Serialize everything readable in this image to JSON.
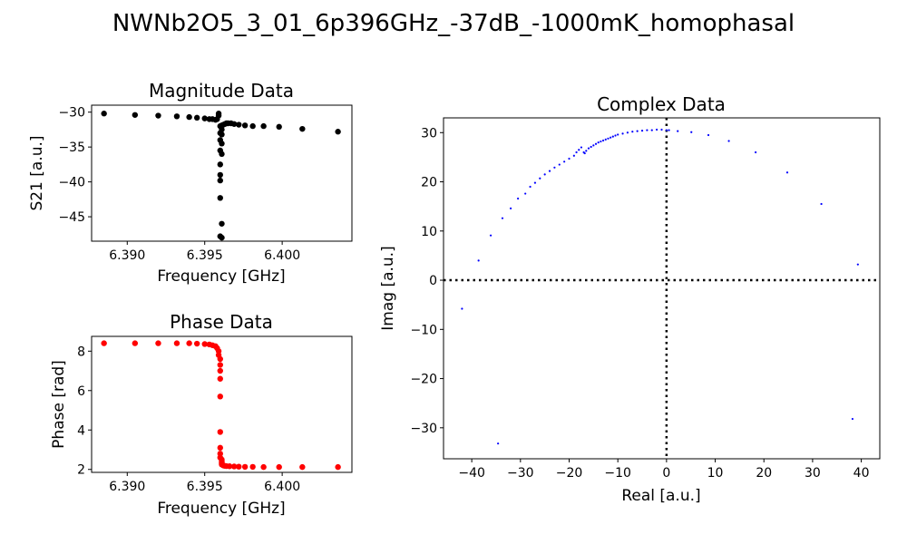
{
  "figure": {
    "suptitle": "NWNb2O5_3_01_6p396GHz_-37dB_-1000mK_homophasal"
  },
  "chart_data": [
    {
      "id": "magnitude",
      "type": "scatter",
      "title": "Magnitude Data",
      "xlabel": "Frequency [GHz]",
      "ylabel": "S21 [a.u.]",
      "xlim": [
        6.3877,
        6.4045
      ],
      "ylim": [
        -48.5,
        -29.0
      ],
      "xticks": [
        6.39,
        6.395,
        6.4
      ],
      "yticks": [
        -30,
        -35,
        -40,
        -45
      ],
      "xtick_labels": [
        "6.390",
        "6.395",
        "6.400"
      ],
      "ytick_labels": [
        "−30",
        "−35",
        "−40",
        "−45"
      ],
      "color": "#000000",
      "x": [
        6.3885,
        6.3905,
        6.392,
        6.3932,
        6.394,
        6.3945,
        6.395,
        6.3953,
        6.3955,
        6.3957,
        6.3958,
        6.3959,
        6.3959,
        6.396,
        6.396,
        6.396,
        6.396,
        6.396,
        6.396,
        6.396,
        6.396,
        6.396,
        6.3961,
        6.3961,
        6.3961,
        6.3961,
        6.3961,
        6.3961,
        6.3961,
        6.3962,
        6.3963,
        6.3964,
        6.3965,
        6.3967,
        6.3969,
        6.3972,
        6.3976,
        6.3981,
        6.3988,
        6.3998,
        6.4013,
        6.4036
      ],
      "y": [
        -30.2,
        -30.4,
        -30.5,
        -30.6,
        -30.7,
        -30.8,
        -30.9,
        -31.0,
        -31.0,
        -31.1,
        -31.0,
        -30.5,
        -30.2,
        -32.0,
        -33.0,
        -34.0,
        -35.5,
        -37.5,
        -39.0,
        -39.8,
        -42.3,
        -47.8,
        -48.0,
        -46.0,
        -36.0,
        -34.5,
        -33.2,
        -32.5,
        -31.9,
        -31.8,
        -31.7,
        -31.6,
        -31.6,
        -31.6,
        -31.7,
        -31.8,
        -31.9,
        -32.0,
        -32.0,
        -32.1,
        -32.4,
        -32.8
      ]
    },
    {
      "id": "phase",
      "type": "scatter",
      "title": "Phase Data",
      "xlabel": "Frequency [GHz]",
      "ylabel": "Phase [rad]",
      "xlim": [
        6.3877,
        6.4045
      ],
      "ylim": [
        1.85,
        8.75
      ],
      "xticks": [
        6.39,
        6.395,
        6.4
      ],
      "yticks": [
        2,
        4,
        6,
        8
      ],
      "xtick_labels": [
        "6.390",
        "6.395",
        "6.400"
      ],
      "ytick_labels": [
        "2",
        "4",
        "6",
        "8"
      ],
      "color": "#ff0000",
      "x": [
        6.3885,
        6.3905,
        6.392,
        6.3932,
        6.394,
        6.3945,
        6.395,
        6.3953,
        6.3955,
        6.3957,
        6.3958,
        6.3959,
        6.3959,
        6.396,
        6.396,
        6.396,
        6.396,
        6.396,
        6.396,
        6.396,
        6.396,
        6.396,
        6.3961,
        6.3961,
        6.3961,
        6.3961,
        6.3961,
        6.3962,
        6.3963,
        6.3964,
        6.3966,
        6.3969,
        6.3972,
        6.3976,
        6.3981,
        6.3988,
        6.3998,
        6.4013,
        6.4036
      ],
      "y": [
        8.4,
        8.4,
        8.4,
        8.4,
        8.4,
        8.38,
        8.36,
        8.34,
        8.3,
        8.25,
        8.15,
        8.0,
        7.8,
        7.6,
        7.3,
        7.0,
        6.6,
        5.7,
        3.9,
        3.1,
        2.8,
        2.6,
        2.5,
        2.4,
        2.35,
        2.3,
        2.25,
        2.2,
        2.18,
        2.17,
        2.16,
        2.15,
        2.14,
        2.13,
        2.13,
        2.12,
        2.12,
        2.12,
        2.12
      ]
    },
    {
      "id": "complex",
      "type": "scatter",
      "title": "Complex Data",
      "xlabel": "Real [a.u.]",
      "ylabel": "Imag [a.u.]",
      "xlim": [
        -45.8,
        43.8
      ],
      "ylim": [
        -36.3,
        33.0
      ],
      "xticks": [
        -40,
        -30,
        -20,
        -10,
        0,
        10,
        20,
        30,
        40
      ],
      "yticks": [
        -30,
        -20,
        -10,
        0,
        10,
        20,
        30
      ],
      "xtick_labels": [
        "−40",
        "−30",
        "−20",
        "−10",
        "0",
        "10",
        "20",
        "30",
        "40"
      ],
      "ytick_labels": [
        "−30",
        "−20",
        "−10",
        "0",
        "10",
        "20",
        "30"
      ],
      "color": "#0000ff",
      "reference_lines": {
        "x": 0,
        "y": 0,
        "style": "dotted"
      },
      "x": [
        -34.6,
        -42.0,
        -38.6,
        -36.1,
        -33.7,
        -32.0,
        -30.5,
        -29.0,
        -28.0,
        -27.0,
        -26.0,
        -25.0,
        -24.0,
        -23.0,
        -22.0,
        -21.0,
        -20.0,
        -19.0,
        -18.5,
        -18.0,
        -17.5,
        -17.0,
        -16.8,
        -16.5,
        -16.0,
        -15.5,
        -15.0,
        -14.5,
        -14.0,
        -13.5,
        -13.0,
        -12.5,
        -12.0,
        -11.5,
        -11.0,
        -10.5,
        -10.0,
        -9.0,
        -8.0,
        -7.0,
        -6.0,
        -5.0,
        -4.0,
        -3.0,
        -2.0,
        -1.0,
        0.0,
        0.5,
        2.3,
        5.1,
        8.6,
        12.8,
        18.3,
        24.8,
        31.8,
        39.3,
        38.2
      ],
      "y": [
        -33.2,
        -5.8,
        4.0,
        9.1,
        12.6,
        14.6,
        16.6,
        17.6,
        19.0,
        19.8,
        20.7,
        21.5,
        22.2,
        22.9,
        23.5,
        24.1,
        24.7,
        25.3,
        26.0,
        26.5,
        27.0,
        26.0,
        25.8,
        26.3,
        26.8,
        27.1,
        27.4,
        27.7,
        28.0,
        28.2,
        28.4,
        28.6,
        28.8,
        29.0,
        29.2,
        29.4,
        29.6,
        29.8,
        30.0,
        30.2,
        30.3,
        30.4,
        30.5,
        30.5,
        30.6,
        30.6,
        30.5,
        30.5,
        30.3,
        30.1,
        29.5,
        28.3,
        26.0,
        21.9,
        15.5,
        3.2,
        -28.2
      ]
    }
  ]
}
